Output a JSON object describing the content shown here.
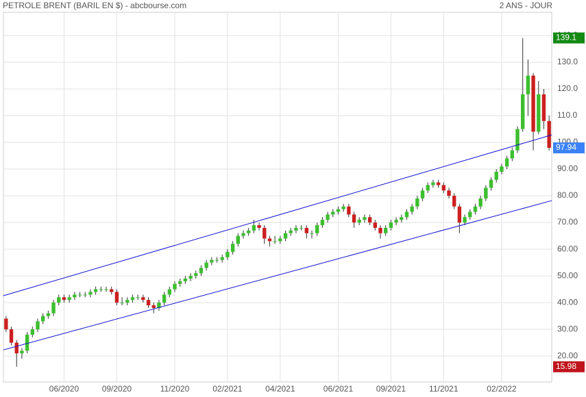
{
  "chart_data": {
    "type": "candlestick",
    "title": "PETROLE BRENT (BARIL EN $) - abcbourse.com",
    "period": "2 ANS - JOUR",
    "categories": [
      null,
      null,
      null,
      null,
      null,
      null,
      null,
      null,
      null,
      null,
      null,
      "06/2020",
      null,
      null,
      null,
      null,
      null,
      null,
      null,
      null,
      null,
      "09/2020",
      null,
      null,
      null,
      null,
      null,
      null,
      null,
      null,
      null,
      null,
      "11/2020",
      null,
      null,
      null,
      null,
      null,
      null,
      null,
      null,
      null,
      "02/2021",
      null,
      null,
      null,
      null,
      null,
      null,
      null,
      null,
      null,
      "04/2021",
      null,
      null,
      null,
      null,
      null,
      null,
      null,
      null,
      null,
      null,
      "06/2021",
      null,
      null,
      null,
      null,
      null,
      null,
      null,
      null,
      null,
      "09/2021",
      null,
      null,
      null,
      null,
      null,
      null,
      null,
      null,
      null,
      "11/2021",
      null,
      null,
      null,
      null,
      null,
      null,
      null,
      null,
      null,
      null,
      "02/2022",
      null,
      null,
      null,
      null,
      null,
      null,
      null,
      null,
      null
    ],
    "open": [
      34,
      30,
      25,
      21,
      22,
      28,
      30,
      33,
      35,
      36,
      40,
      42,
      41,
      42,
      43,
      43,
      43,
      44,
      45,
      45,
      45,
      44,
      40,
      40,
      41,
      42,
      42,
      41,
      39,
      38,
      40,
      43,
      45,
      47,
      48,
      49,
      50,
      51,
      53,
      55,
      56,
      56,
      57,
      59,
      62,
      65,
      66,
      67,
      69,
      68,
      64,
      63,
      63,
      64,
      66,
      67,
      68,
      68,
      66,
      66,
      69,
      71,
      73,
      74,
      75,
      76,
      73,
      70,
      71,
      72,
      70,
      68,
      66,
      68,
      70,
      71,
      72,
      74,
      76,
      79,
      82,
      84,
      85,
      84,
      82,
      80,
      76,
      70,
      72,
      74,
      76,
      79,
      83,
      86,
      89,
      91,
      94,
      97,
      105,
      118,
      125,
      104,
      118,
      108
    ],
    "high": [
      35,
      31,
      26,
      23,
      29,
      31,
      34,
      36,
      37,
      41,
      43,
      43,
      43,
      44,
      44,
      44,
      45,
      46,
      46,
      46,
      46,
      45,
      42,
      42,
      43,
      43,
      43,
      42,
      40,
      41,
      44,
      46,
      48,
      49,
      50,
      51,
      52,
      54,
      56,
      57,
      57,
      58,
      60,
      63,
      66,
      67,
      68,
      71,
      70,
      69,
      65,
      65,
      65,
      67,
      68,
      69,
      69,
      69,
      67,
      70,
      72,
      74,
      75,
      76,
      77,
      77,
      74,
      72,
      73,
      73,
      71,
      69,
      69,
      71,
      72,
      73,
      75,
      77,
      80,
      83,
      85,
      86,
      86,
      85,
      83,
      81,
      77,
      73,
      75,
      77,
      80,
      84,
      87,
      90,
      92,
      95,
      98,
      106,
      139.1,
      131,
      126,
      123,
      120,
      110
    ],
    "low": [
      29,
      24,
      15.98,
      19,
      21,
      27,
      29,
      32,
      34,
      35,
      39,
      40,
      40,
      41,
      42,
      42,
      42,
      43,
      44,
      44,
      43,
      39,
      39,
      39,
      40,
      41,
      40,
      38,
      36,
      37,
      39,
      42,
      44,
      46,
      47,
      48,
      49,
      50,
      52,
      54,
      55,
      55,
      56,
      58,
      61,
      64,
      65,
      66,
      67,
      62,
      61,
      62,
      62,
      63,
      65,
      66,
      67,
      64,
      64,
      65,
      68,
      70,
      72,
      73,
      74,
      72,
      68,
      69,
      70,
      69,
      67,
      64,
      65,
      67,
      69,
      70,
      71,
      73,
      75,
      78,
      81,
      83,
      83,
      81,
      79,
      75,
      66,
      69,
      71,
      73,
      75,
      78,
      82,
      85,
      88,
      90,
      93,
      96,
      104,
      110,
      97,
      103,
      105,
      97
    ],
    "close": [
      30,
      25,
      21,
      22,
      28,
      30,
      33,
      35,
      36,
      40,
      42,
      41,
      42,
      43,
      43,
      43,
      44,
      45,
      45,
      45,
      44,
      40,
      40,
      41,
      42,
      42,
      41,
      39,
      38,
      40,
      43,
      45,
      47,
      48,
      49,
      50,
      51,
      53,
      55,
      56,
      56,
      57,
      59,
      62,
      65,
      66,
      67,
      69,
      68,
      64,
      63,
      63,
      64,
      66,
      67,
      68,
      68,
      66,
      66,
      69,
      71,
      73,
      74,
      75,
      76,
      73,
      70,
      71,
      72,
      70,
      68,
      66,
      68,
      70,
      71,
      72,
      74,
      76,
      79,
      82,
      84,
      85,
      84,
      82,
      80,
      76,
      70,
      72,
      74,
      76,
      79,
      83,
      86,
      89,
      91,
      94,
      97,
      105,
      118,
      125,
      104,
      118,
      108,
      97.94
    ],
    "up_color": "#3cbf2e",
    "down_color": "#cc1f1f",
    "channel_color": "#1010d0",
    "channels": [
      {
        "start": 42.6,
        "end": 102.8
      },
      {
        "start": 22.3,
        "end": 78.2
      }
    ],
    "markers": [
      {
        "value": 139.1,
        "color": "#138a13"
      },
      {
        "value": 97.94,
        "color": "#3b82f6"
      },
      {
        "value": 15.98,
        "color": "#c0141c"
      }
    ],
    "ylim": [
      10.3,
      148.7
    ],
    "yticks": [
      {
        "value": 20,
        "label": "20.00"
      },
      {
        "value": 30,
        "label": "30.00"
      },
      {
        "value": 40,
        "label": "40.00"
      },
      {
        "value": 50,
        "label": "50.00"
      },
      {
        "value": 60,
        "label": "60.00"
      },
      {
        "value": 70,
        "label": "70.00"
      },
      {
        "value": 80,
        "label": "80.00"
      },
      {
        "value": 90,
        "label": "90.00"
      },
      {
        "value": 100,
        "label": "100.0"
      },
      {
        "value": 110,
        "label": "110.0"
      },
      {
        "value": 120,
        "label": "120.0"
      },
      {
        "value": 130,
        "label": "130.0"
      },
      {
        "value": 140,
        "label": "140.0"
      }
    ],
    "grid": true
  }
}
